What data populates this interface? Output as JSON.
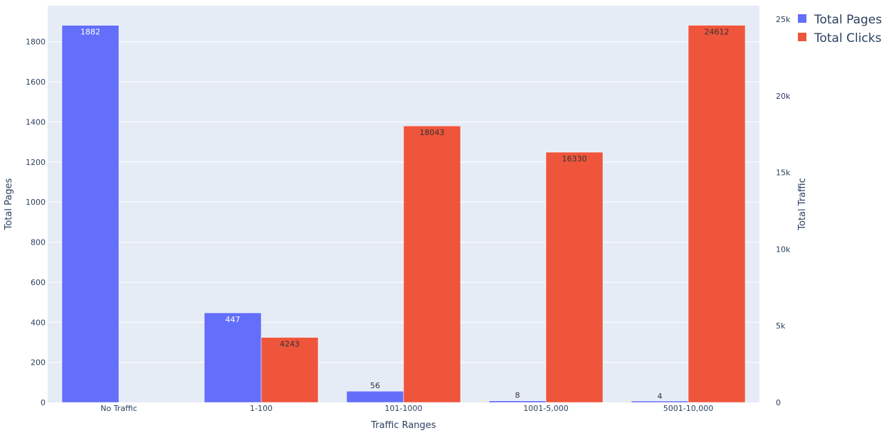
{
  "chart_data": {
    "type": "bar",
    "categories": [
      "No Traffic",
      "1-100",
      "101-1000",
      "1001-5,000",
      "5001-10,000"
    ],
    "series": [
      {
        "name": "Total Pages",
        "axis": "left",
        "color": "#636efa",
        "values": [
          1882,
          447,
          56,
          8,
          4
        ],
        "labels": [
          "1882",
          "447",
          "56",
          "8",
          "4"
        ]
      },
      {
        "name": "Total Clicks",
        "axis": "right",
        "color": "#ef553b",
        "values": [
          0,
          4243,
          18043,
          16330,
          24612
        ],
        "labels": [
          "",
          "4243",
          "18043",
          "16330",
          "24612"
        ]
      }
    ],
    "xlabel": "Traffic Ranges",
    "ylabel_left": "Total Pages",
    "ylabel_right": "Total Traffic",
    "ylim_left": [
      0,
      1980
    ],
    "ylim_right": [
      0,
      25890
    ],
    "yticks_left": [
      0,
      200,
      400,
      600,
      800,
      1000,
      1200,
      1400,
      1600,
      1800
    ],
    "yticks_right": [
      0,
      5000,
      10000,
      15000,
      20000,
      25000
    ],
    "yticklabels_right": [
      "0",
      "5k",
      "10k",
      "15k",
      "20k",
      "25k"
    ],
    "grid": true,
    "legend_position": "top-right",
    "plot_background": "#e5ecf6"
  }
}
